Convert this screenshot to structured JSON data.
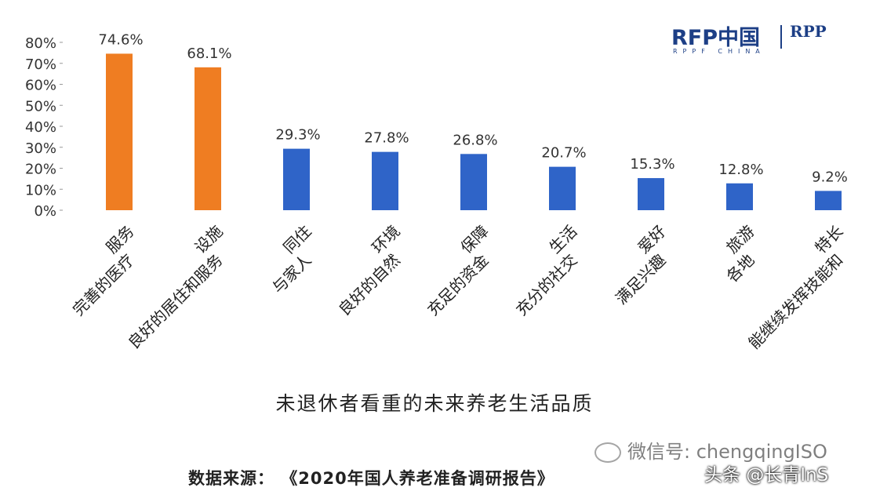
{
  "chart_data": {
    "type": "bar",
    "title": "未退休者看重的未来养老生活品质",
    "xlabel": "",
    "ylabel": "",
    "ylim": [
      0,
      80
    ],
    "yticks": [
      "0%",
      "10%",
      "20%",
      "30%",
      "40%",
      "50%",
      "60%",
      "70%",
      "80%"
    ],
    "grid": false,
    "categories": [
      "完善的医疗服务",
      "良好的居住和服务设施",
      "与家人同住",
      "良好的自然环境",
      "充足的资金保障",
      "充分的社交生活",
      "满足兴趣爱好",
      "各地旅游",
      "能继续发挥技能和特长"
    ],
    "category_lines": [
      [
        "完善的医疗",
        "服务"
      ],
      [
        "良好的居住和服务",
        "设施"
      ],
      [
        "与家人",
        "同住"
      ],
      [
        "良好的自然",
        "环境"
      ],
      [
        "充足的资金",
        "保障"
      ],
      [
        "充分的社交",
        "生活"
      ],
      [
        "满足兴趣",
        "爱好"
      ],
      [
        "各地",
        "旅游"
      ],
      [
        "能继续发挥技能和",
        "特长"
      ]
    ],
    "values": [
      74.6,
      68.1,
      29.3,
      27.8,
      26.8,
      20.7,
      15.3,
      12.8,
      9.2
    ],
    "data_labels": [
      "74.6%",
      "68.1%",
      "29.3%",
      "27.8%",
      "26.8%",
      "20.7%",
      "15.3%",
      "12.8%",
      "9.2%"
    ],
    "colors": [
      "#ef7d22",
      "#ef7d22",
      "#2f64c8",
      "#2f64c8",
      "#2f64c8",
      "#2f64c8",
      "#2f64c8",
      "#2f64c8",
      "#2f64c8"
    ]
  },
  "logo": {
    "main": "RFP中国",
    "sub": "RPPF CHINA",
    "rpp": "RPP"
  },
  "source_text": "数据来源：  《2020年国人养老准备调研报告》",
  "watermark": {
    "wechat": "微信号: chengqingISO",
    "toutiao": "头条 @长青InS"
  }
}
